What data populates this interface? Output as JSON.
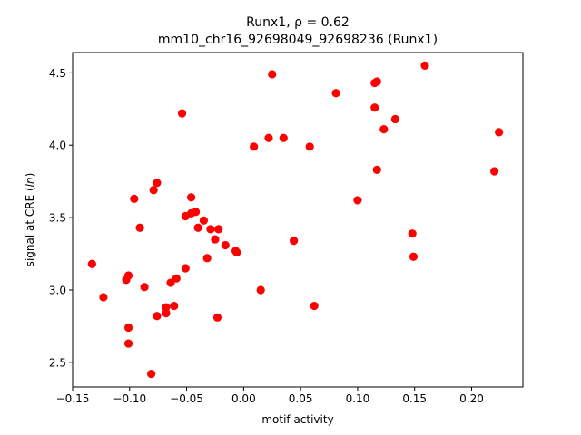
{
  "chart_data": {
    "type": "scatter",
    "title_line1": "Runx1, ρ = 0.62",
    "title_line2": "mm10_chr16_92698049_92698236 (Runx1)",
    "xlabel": "motif activity",
    "ylabel": "signal at CRE (ln)",
    "xlim": [
      -0.15,
      0.245
    ],
    "ylim": [
      2.33,
      4.64
    ],
    "xticks": [
      -0.15,
      -0.1,
      -0.05,
      0.0,
      0.05,
      0.1,
      0.15,
      0.2
    ],
    "xtick_labels": [
      "−0.15",
      "−0.10",
      "−0.05",
      "0.00",
      "0.05",
      "0.10",
      "0.15",
      "0.20"
    ],
    "yticks": [
      2.5,
      3.0,
      3.5,
      4.0,
      4.5
    ],
    "ytick_labels": [
      "2.5",
      "3.0",
      "3.5",
      "4.0",
      "4.5"
    ],
    "grid": false,
    "marker_color": "#ff0000",
    "points": [
      {
        "x": -0.133,
        "y": 3.18
      },
      {
        "x": -0.123,
        "y": 2.95
      },
      {
        "x": -0.103,
        "y": 3.07
      },
      {
        "x": -0.101,
        "y": 3.1
      },
      {
        "x": -0.101,
        "y": 2.74
      },
      {
        "x": -0.101,
        "y": 2.63
      },
      {
        "x": -0.096,
        "y": 3.63
      },
      {
        "x": -0.091,
        "y": 3.43
      },
      {
        "x": -0.087,
        "y": 3.02
      },
      {
        "x": -0.081,
        "y": 2.42
      },
      {
        "x": -0.079,
        "y": 3.69
      },
      {
        "x": -0.076,
        "y": 3.74
      },
      {
        "x": -0.076,
        "y": 2.82
      },
      {
        "x": -0.068,
        "y": 2.84
      },
      {
        "x": -0.068,
        "y": 2.88
      },
      {
        "x": -0.064,
        "y": 3.05
      },
      {
        "x": -0.061,
        "y": 2.89
      },
      {
        "x": -0.059,
        "y": 3.08
      },
      {
        "x": -0.054,
        "y": 4.22
      },
      {
        "x": -0.051,
        "y": 3.51
      },
      {
        "x": -0.051,
        "y": 3.15
      },
      {
        "x": -0.046,
        "y": 3.64
      },
      {
        "x": -0.046,
        "y": 3.53
      },
      {
        "x": -0.042,
        "y": 3.54
      },
      {
        "x": -0.04,
        "y": 3.43
      },
      {
        "x": -0.035,
        "y": 3.48
      },
      {
        "x": -0.032,
        "y": 3.22
      },
      {
        "x": -0.029,
        "y": 3.42
      },
      {
        "x": -0.025,
        "y": 3.35
      },
      {
        "x": -0.023,
        "y": 2.81
      },
      {
        "x": -0.022,
        "y": 3.42
      },
      {
        "x": -0.016,
        "y": 3.31
      },
      {
        "x": -0.007,
        "y": 3.27
      },
      {
        "x": -0.006,
        "y": 3.26
      },
      {
        "x": 0.009,
        "y": 3.99
      },
      {
        "x": 0.015,
        "y": 3.0
      },
      {
        "x": 0.022,
        "y": 4.05
      },
      {
        "x": 0.025,
        "y": 4.49
      },
      {
        "x": 0.035,
        "y": 4.05
      },
      {
        "x": 0.044,
        "y": 3.34
      },
      {
        "x": 0.058,
        "y": 3.99
      },
      {
        "x": 0.062,
        "y": 2.89
      },
      {
        "x": 0.081,
        "y": 4.36
      },
      {
        "x": 0.1,
        "y": 3.62
      },
      {
        "x": 0.115,
        "y": 4.26
      },
      {
        "x": 0.115,
        "y": 4.43
      },
      {
        "x": 0.117,
        "y": 4.44
      },
      {
        "x": 0.117,
        "y": 3.83
      },
      {
        "x": 0.123,
        "y": 4.11
      },
      {
        "x": 0.133,
        "y": 4.18
      },
      {
        "x": 0.148,
        "y": 3.39
      },
      {
        "x": 0.149,
        "y": 3.23
      },
      {
        "x": 0.159,
        "y": 4.55
      },
      {
        "x": 0.22,
        "y": 3.82
      },
      {
        "x": 0.224,
        "y": 4.09
      }
    ]
  }
}
